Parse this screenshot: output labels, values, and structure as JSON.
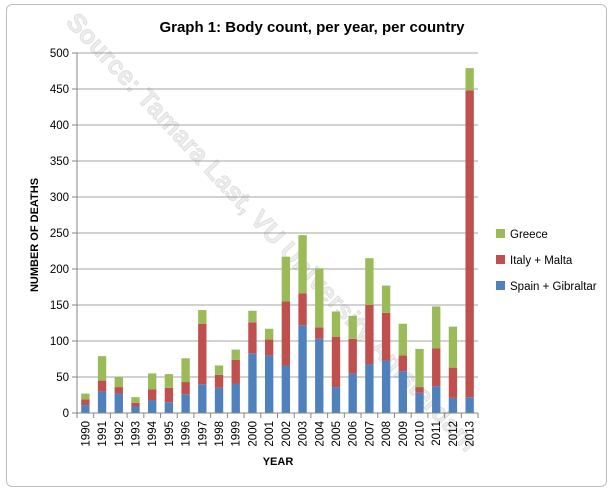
{
  "chart_data": {
    "type": "bar",
    "stacked": true,
    "title": "Graph 1: Body count, per year, per country",
    "xlabel": "YEAR",
    "ylabel": "NUMBER OF DEATHS",
    "ylim": [
      0,
      500
    ],
    "yticks": [
      0,
      50,
      100,
      150,
      200,
      250,
      300,
      350,
      400,
      450,
      500
    ],
    "grid": true,
    "legend_position": "right",
    "watermark": "Source: Tamara Last, VU University Amsterdam",
    "categories": [
      "1990",
      "1991",
      "1992",
      "1993",
      "1994",
      "1995",
      "1996",
      "1997",
      "1998",
      "1999",
      "2000",
      "2001",
      "2002",
      "2003",
      "2004",
      "2005",
      "2006",
      "2007",
      "2008",
      "2009",
      "2010",
      "2011",
      "2012",
      "2013"
    ],
    "series": [
      {
        "name": "Spain + Gibraltar",
        "color": "#4f81bd",
        "values": [
          11,
          30,
          27,
          9,
          18,
          15,
          26,
          40,
          35,
          41,
          83,
          80,
          66,
          122,
          103,
          36,
          55,
          68,
          73,
          58,
          28,
          37,
          21,
          22
        ]
      },
      {
        "name": "Italy + Malta",
        "color": "#c0504d",
        "values": [
          8,
          15,
          9,
          5,
          15,
          20,
          17,
          84,
          18,
          33,
          43,
          22,
          89,
          44,
          16,
          70,
          48,
          82,
          66,
          22,
          8,
          53,
          42,
          426
        ]
      },
      {
        "name": "Greece",
        "color": "#9bbb59",
        "values": [
          8,
          34,
          14,
          8,
          22,
          19,
          33,
          19,
          13,
          14,
          16,
          15,
          62,
          81,
          82,
          35,
          32,
          65,
          38,
          44,
          53,
          58,
          57,
          31
        ]
      }
    ]
  }
}
